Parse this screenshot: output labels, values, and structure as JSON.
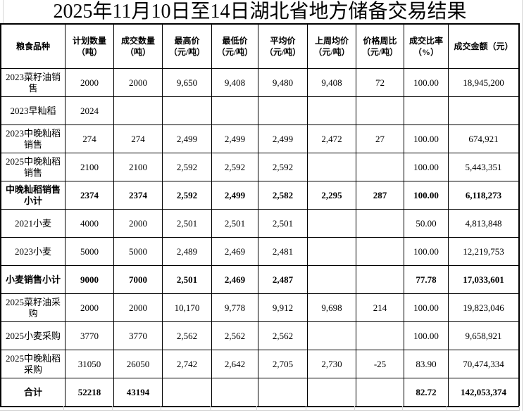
{
  "title": "2025年11月10日至14日湖北省地方储备交易结果",
  "columns": [
    "粮食品种",
    "计划数量\n（吨）",
    "成交数量\n（吨）",
    "最高价\n（元/吨）",
    "最低价\n（元/吨）",
    "平均价\n（元/吨）",
    "上周均价\n（元/吨）",
    "价格周比\n（元/吨）",
    "成交比率\n（%）",
    "成交金额（元）"
  ],
  "column_keys": [
    "grain-type",
    "planned-qty",
    "deal-qty",
    "high-price",
    "low-price",
    "avg-price",
    "lastweek-avg-price",
    "price-wow",
    "deal-ratio",
    "deal-amount"
  ],
  "rows": [
    {
      "bold": false,
      "cells": [
        "2023菜籽油销售",
        "2000",
        "2000",
        "9,650",
        "9,408",
        "9,480",
        "9,408",
        "72",
        "100.00",
        "18,945,200"
      ]
    },
    {
      "bold": false,
      "cells": [
        "2023早籼稻",
        "2024",
        "",
        "",
        "",
        "",
        "",
        "",
        "",
        ""
      ]
    },
    {
      "bold": false,
      "cells": [
        "2023中晚籼稻销售",
        "274",
        "274",
        "2,499",
        "2,499",
        "2,499",
        "2,472",
        "27",
        "100.00",
        "674,921"
      ]
    },
    {
      "bold": false,
      "cells": [
        "2025中晚籼稻销售",
        "2100",
        "2100",
        "2,592",
        "2,592",
        "2,592",
        "",
        "",
        "100.00",
        "5,443,351"
      ]
    },
    {
      "bold": true,
      "cells": [
        "中晚籼稻销售小计",
        "2374",
        "2374",
        "2,592",
        "2,499",
        "2,582",
        "2,295",
        "287",
        "100.00",
        "6,118,273"
      ]
    },
    {
      "bold": false,
      "cells": [
        "2021小麦",
        "4000",
        "2000",
        "2,501",
        "2,501",
        "2,501",
        "",
        "",
        "50.00",
        "4,813,848"
      ]
    },
    {
      "bold": false,
      "cells": [
        "2023小麦",
        "5000",
        "5000",
        "2,489",
        "2,469",
        "2,481",
        "",
        "",
        "100.00",
        "12,219,753"
      ]
    },
    {
      "bold": true,
      "cells": [
        "小麦销售小计",
        "9000",
        "7000",
        "2,501",
        "2,469",
        "2,487",
        "",
        "",
        "77.78",
        "17,033,601"
      ]
    },
    {
      "bold": false,
      "cells": [
        "2025菜籽油采购",
        "2000",
        "2000",
        "10,170",
        "9,778",
        "9,912",
        "9,698",
        "214",
        "100.00",
        "19,823,046"
      ]
    },
    {
      "bold": false,
      "cells": [
        "2025小麦采购",
        "3770",
        "3770",
        "2,562",
        "2,562",
        "2,562",
        "",
        "",
        "100.00",
        "9,658,921"
      ]
    },
    {
      "bold": false,
      "cells": [
        "2025中晚籼稻采购",
        "31050",
        "26050",
        "2,742",
        "2,642",
        "2,705",
        "2,730",
        "-25",
        "83.90",
        "70,474,334"
      ]
    },
    {
      "bold": true,
      "cells": [
        "合计",
        "52218",
        "43194",
        "",
        "",
        "",
        "",
        "",
        "82.72",
        "142,053,374"
      ]
    }
  ],
  "colors": {
    "table_border": "#000000",
    "sheet_gridline": "#d6d6d6",
    "background": "#ffffff",
    "text": "#000000"
  }
}
